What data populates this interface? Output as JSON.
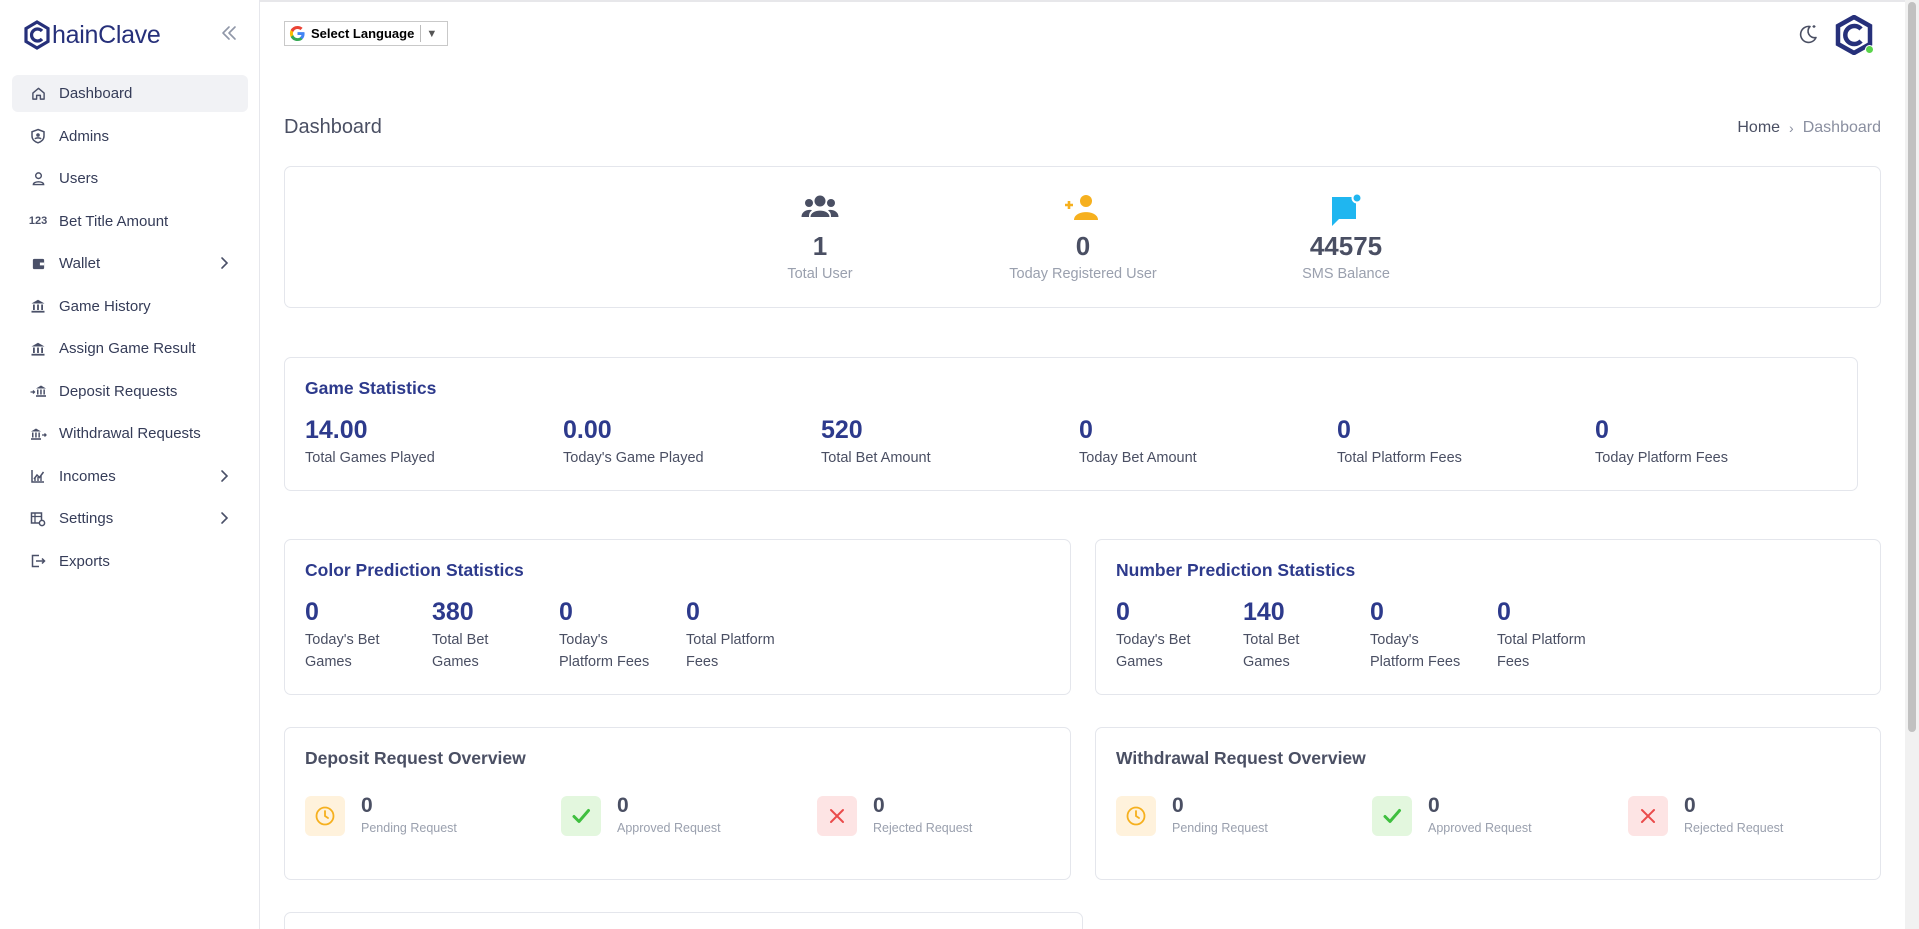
{
  "brand": {
    "name": "hainClave"
  },
  "sidebar": {
    "items": [
      {
        "label": "Dashboard",
        "icon": "home-icon",
        "active": true
      },
      {
        "label": "Admins",
        "icon": "shield-icon"
      },
      {
        "label": "Users",
        "icon": "user-icon"
      },
      {
        "label": "Bet Title Amount",
        "icon": "numbers-123-icon"
      },
      {
        "label": "Wallet",
        "icon": "wallet-icon",
        "submenu": true
      },
      {
        "label": "Game History",
        "icon": "bank-icon"
      },
      {
        "label": "Assign Game Result",
        "icon": "bank-icon"
      },
      {
        "label": "Deposit Requests",
        "icon": "bank-deposit-icon"
      },
      {
        "label": "Withdrawal Requests",
        "icon": "bank-withdraw-icon"
      },
      {
        "label": "Incomes",
        "icon": "chart-income-icon",
        "submenu": true
      },
      {
        "label": "Settings",
        "icon": "settings-table-icon",
        "submenu": true
      },
      {
        "label": "Exports",
        "icon": "logout-export-icon"
      }
    ]
  },
  "topbar": {
    "language_label": "Select Language",
    "language_arrow": "▼"
  },
  "header": {
    "title": "Dashboard"
  },
  "breadcrumb": {
    "home": "Home",
    "separator": "›",
    "current": "Dashboard"
  },
  "overview": [
    {
      "value": "1",
      "label": "Total User",
      "icon": "users-group-icon",
      "color": "#4a4f63"
    },
    {
      "value": "0",
      "label": "Today Registered User",
      "icon": "user-add-icon",
      "color": "#f6b01e"
    },
    {
      "value": "44575",
      "label": "SMS Balance",
      "icon": "message-notification-icon",
      "color": "#1fb6f0"
    }
  ],
  "game_statistics": {
    "title": "Game Statistics",
    "stats": [
      {
        "value": "14.00",
        "label": "Total Games Played"
      },
      {
        "value": "0.00",
        "label": "Today's Game Played"
      },
      {
        "value": "520",
        "label": "Total Bet Amount"
      },
      {
        "value": "0",
        "label": "Today Bet Amount"
      },
      {
        "value": "0",
        "label": "Total Platform Fees"
      },
      {
        "value": "0",
        "label": "Today Platform Fees"
      }
    ]
  },
  "color_prediction": {
    "title": "Color Prediction Statistics",
    "stats": [
      {
        "value": "0",
        "label1": "Today's Bet",
        "label2": "Games"
      },
      {
        "value": "380",
        "label1": "Total Bet",
        "label2": "Games"
      },
      {
        "value": "0",
        "label1": "Today's",
        "label2": "Platform Fees"
      },
      {
        "value": "0",
        "label1": "Total Platform",
        "label2": "Fees"
      }
    ]
  },
  "number_prediction": {
    "title": "Number Prediction Statistics",
    "stats": [
      {
        "value": "0",
        "label1": "Today's Bet",
        "label2": "Games"
      },
      {
        "value": "140",
        "label1": "Total Bet",
        "label2": "Games"
      },
      {
        "value": "0",
        "label1": "Today's",
        "label2": "Platform Fees"
      },
      {
        "value": "0",
        "label1": "Total Platform",
        "label2": "Fees"
      }
    ]
  },
  "deposit_overview": {
    "title": "Deposit Request Overview",
    "items": [
      {
        "value": "0",
        "label": "Pending Request",
        "icon": "clock-icon"
      },
      {
        "value": "0",
        "label": "Approved Request",
        "icon": "check-icon"
      },
      {
        "value": "0",
        "label": "Rejected Request",
        "icon": "close-icon"
      }
    ]
  },
  "withdrawal_overview": {
    "title": "Withdrawal Request Overview",
    "items": [
      {
        "value": "0",
        "label": "Pending Request",
        "icon": "clock-icon"
      },
      {
        "value": "0",
        "label": "Approved Request",
        "icon": "check-icon"
      },
      {
        "value": "0",
        "label": "Rejected Request",
        "icon": "close-icon"
      }
    ]
  },
  "colors": {
    "primary": "#2d3a8c",
    "pending": "#f6b01e",
    "approved": "#3fbf3f",
    "rejected": "#ea4b4b"
  }
}
